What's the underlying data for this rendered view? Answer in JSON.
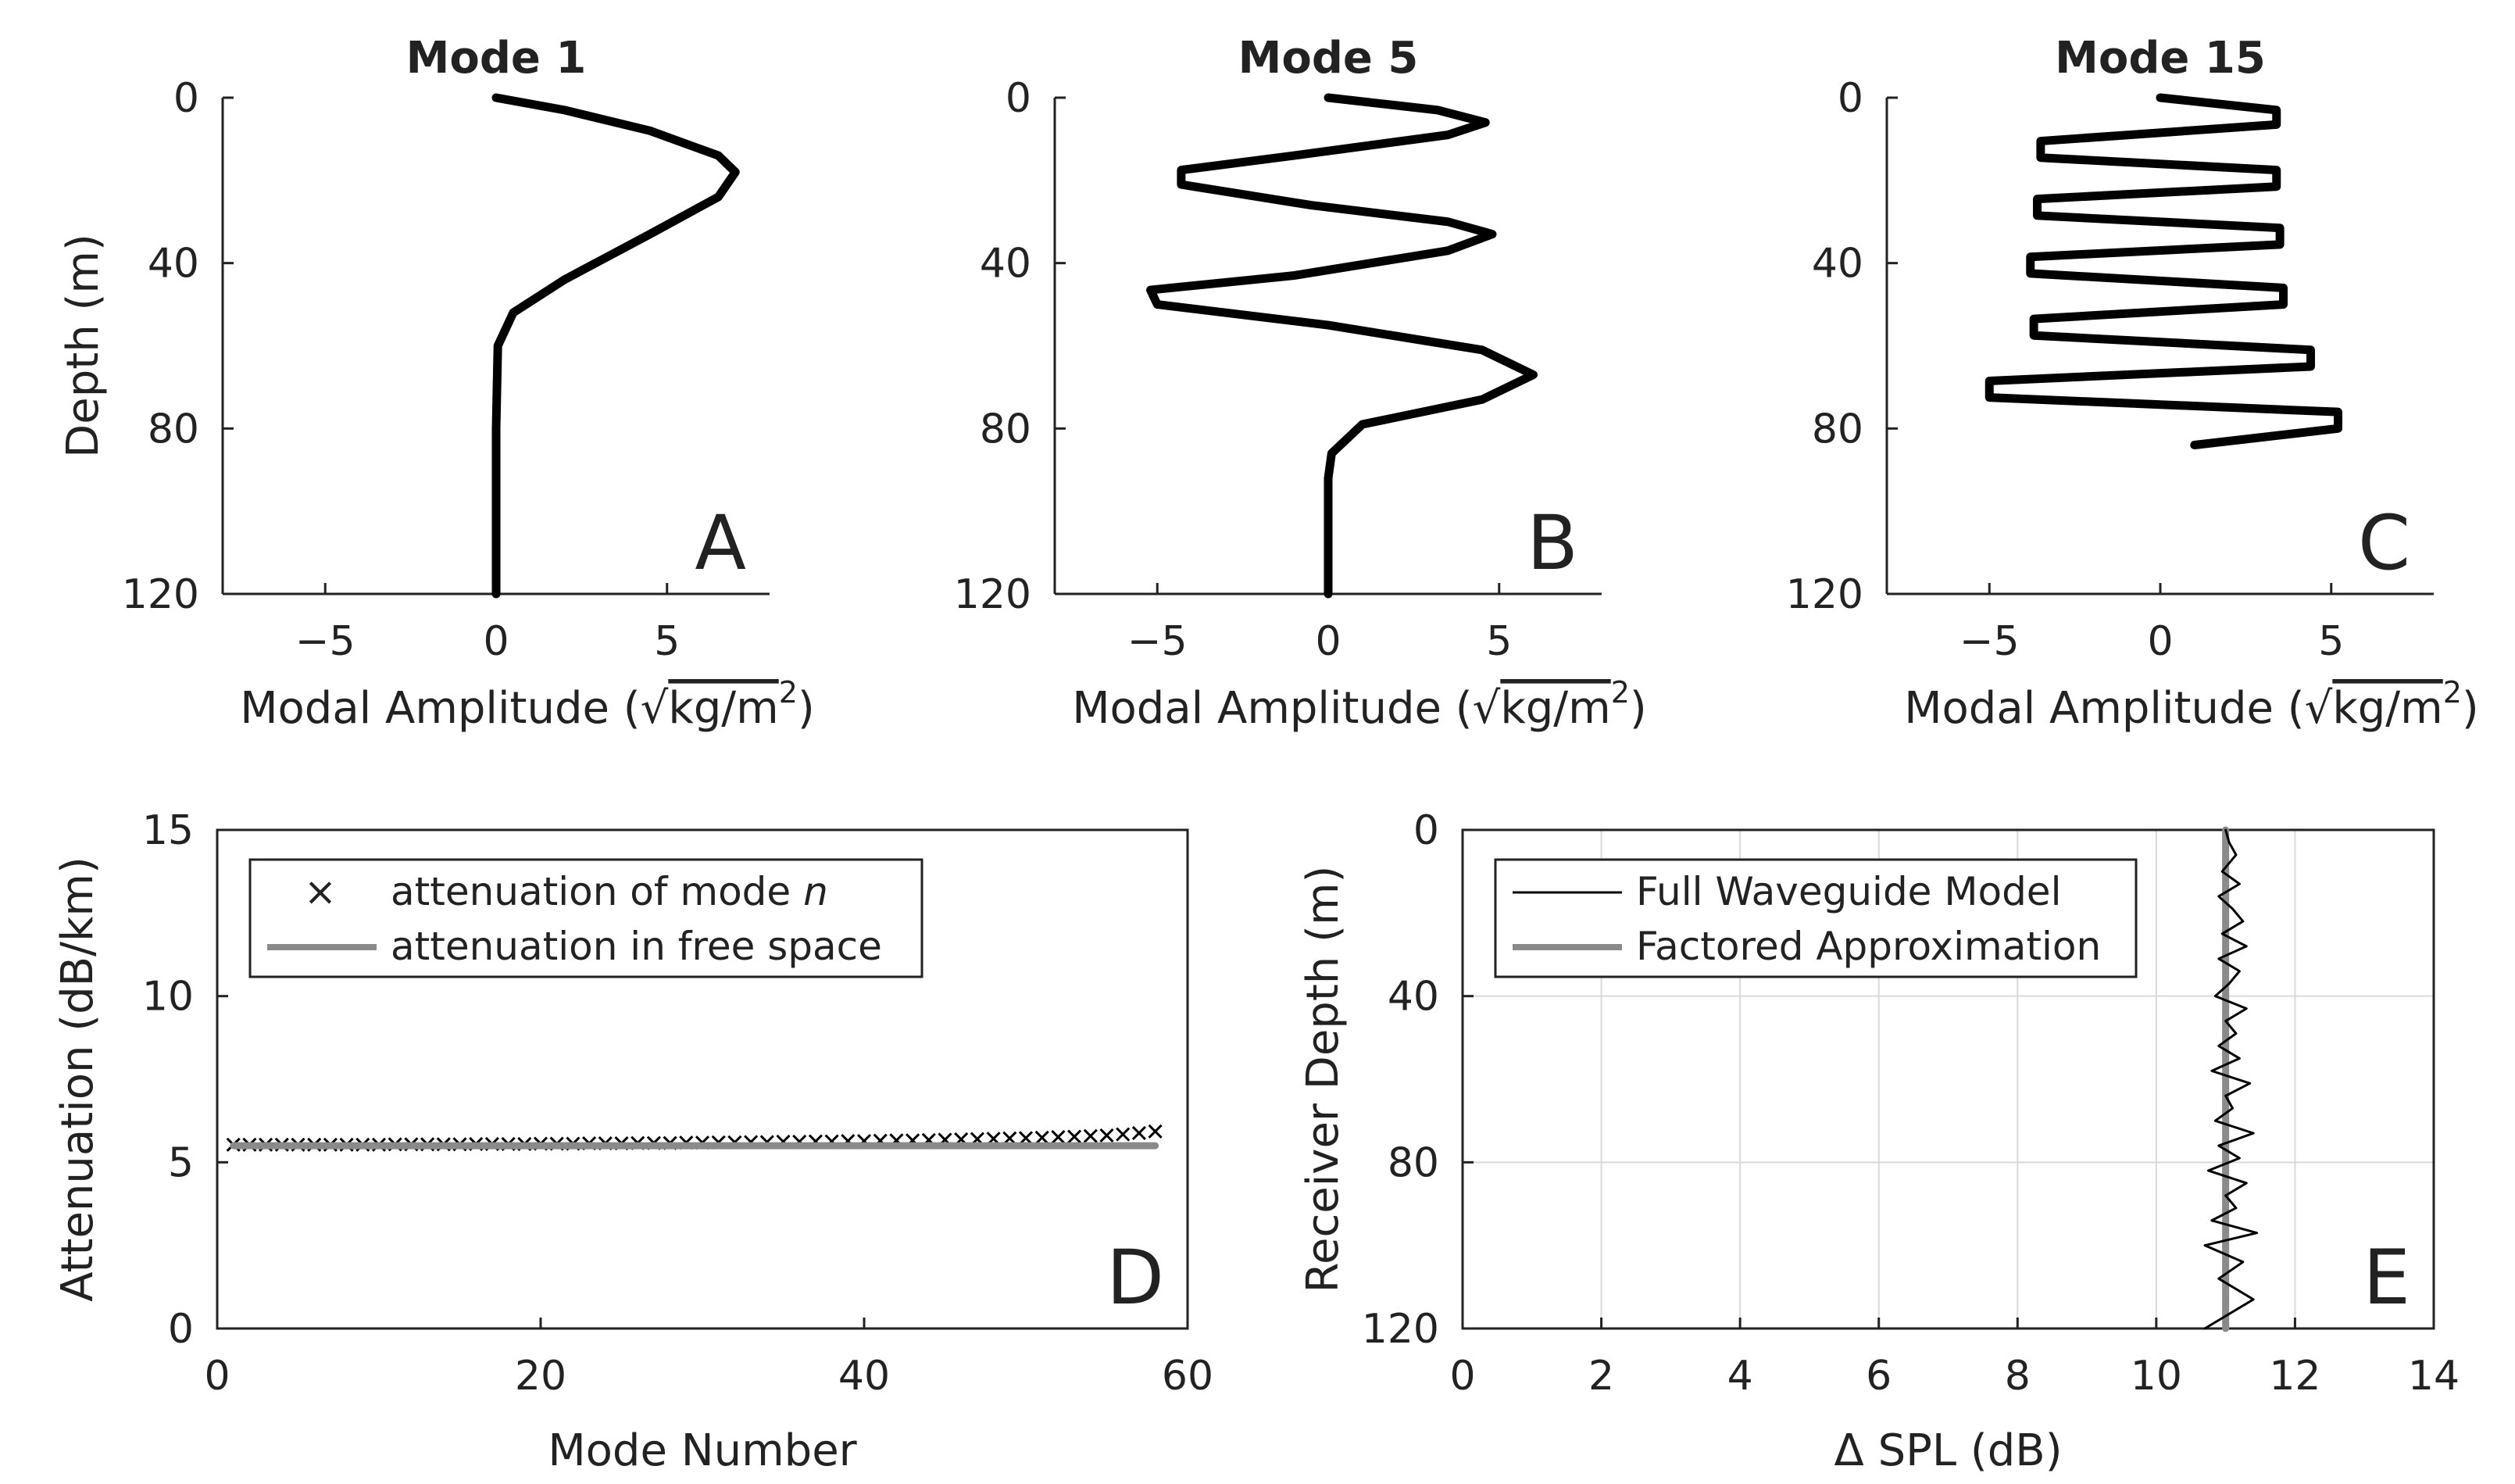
{
  "colors": {
    "curve": "#000000",
    "free_space": "#8a8a8a",
    "approx": "#8a8a8a",
    "grid": "#d9d9d9",
    "axis": "#222222"
  },
  "chart_data": [
    {
      "id": "A",
      "type": "line",
      "title": "Mode 1",
      "letter": "A",
      "xlabel_main": "Modal Amplitude (",
      "xlabel_sqrt": "√",
      "xlabel_unit": "kg/m",
      "xlabel_sup": "2",
      "xlabel_close": ")",
      "ylabel": "Depth (m)",
      "xlim": [
        -8,
        8
      ],
      "ylim": [
        0,
        120
      ],
      "y_reversed": true,
      "xticks": [
        -5,
        0,
        5
      ],
      "xtick_labels": [
        "−5",
        "0",
        "5"
      ],
      "yticks": [
        0,
        40,
        80,
        120
      ],
      "ytick_labels": [
        "0",
        "40",
        "80",
        "120"
      ],
      "series": [
        {
          "name": "Mode 1",
          "x": [
            0,
            2,
            4.5,
            6.5,
            7,
            6.5,
            4.5,
            2,
            0.5,
            0.05,
            0,
            0
          ],
          "y": [
            0,
            3,
            8,
            14,
            18,
            24,
            33,
            44,
            52,
            60,
            80,
            120
          ]
        }
      ]
    },
    {
      "id": "B",
      "type": "line",
      "title": "Mode 5",
      "letter": "B",
      "xlabel_main": "Modal Amplitude (",
      "xlabel_sqrt": "√",
      "xlabel_unit": "kg/m",
      "xlabel_sup": "2",
      "xlabel_close": ")",
      "xlim": [
        -8,
        8
      ],
      "ylim": [
        0,
        120
      ],
      "y_reversed": true,
      "xticks": [
        -5,
        0,
        5
      ],
      "xtick_labels": [
        "−5",
        "0",
        "5"
      ],
      "yticks": [
        0,
        40,
        80,
        120
      ],
      "ytick_labels": [
        "0",
        "40",
        "80",
        "120"
      ],
      "series": [
        {
          "name": "Mode 5",
          "x": [
            0,
            3.2,
            4.6,
            3.5,
            -1.0,
            -4.3,
            -4.3,
            -0.5,
            3.5,
            4.8,
            3.5,
            -1.0,
            -5.2,
            -5.0,
            0,
            4.5,
            6.0,
            4.5,
            1.0,
            0.1,
            0,
            0
          ],
          "y": [
            0,
            3,
            6,
            9,
            14,
            17.5,
            21,
            26,
            30,
            33,
            37,
            43,
            46.5,
            50,
            55,
            61,
            67,
            73,
            79,
            86,
            92,
            120
          ]
        }
      ]
    },
    {
      "id": "C",
      "type": "line",
      "title": "Mode 15",
      "letter": "C",
      "xlabel_main": "Modal Amplitude (",
      "xlabel_sqrt": "√",
      "xlabel_unit": "kg/m",
      "xlabel_sup": "2",
      "xlabel_close": ")",
      "xlim": [
        -8,
        8
      ],
      "ylim": [
        0,
        120
      ],
      "y_reversed": true,
      "xticks": [
        -5,
        0,
        5
      ],
      "xtick_labels": [
        "−5",
        "0",
        "5"
      ],
      "yticks": [
        0,
        40,
        80,
        120
      ],
      "ytick_labels": [
        "0",
        "40",
        "80",
        "120"
      ],
      "series": [
        {
          "name": "Mode 15",
          "x": [
            0,
            3.4,
            3.4,
            -3.5,
            -3.5,
            3.4,
            3.4,
            -3.6,
            -3.6,
            3.5,
            3.5,
            -3.8,
            -3.8,
            3.6,
            3.6,
            -3.7,
            -3.7,
            4.4,
            4.4,
            -5.0,
            -5.0,
            5.2,
            5.2,
            1.0
          ],
          "y": [
            0,
            3,
            6.5,
            10.5,
            14.5,
            17.5,
            21.5,
            24.5,
            28.5,
            31.5,
            35.5,
            38.5,
            42.5,
            46,
            50,
            53.5,
            57.5,
            61,
            65,
            68.5,
            72.5,
            76,
            80,
            84
          ]
        }
      ]
    },
    {
      "id": "D",
      "type": "scatter",
      "letter": "D",
      "xlabel": "Mode Number",
      "ylabel": "Attenuation (dB/km)",
      "xlim": [
        0,
        60
      ],
      "ylim": [
        0,
        15
      ],
      "xticks": [
        0,
        20,
        40,
        60
      ],
      "xtick_labels": [
        "0",
        "20",
        "40",
        "60"
      ],
      "yticks": [
        0,
        5,
        10,
        15
      ],
      "ytick_labels": [
        "0",
        "5",
        "10",
        "15"
      ],
      "legend_position": "top-left",
      "legend": [
        {
          "marker": "×",
          "text": "attenuation of mode ",
          "text_italic": "n"
        },
        {
          "marker": "line",
          "text": "attenuation in free space"
        }
      ],
      "series": [
        {
          "name": "attenuation of mode n",
          "marker": "x",
          "x": [
            1,
            2,
            3,
            4,
            5,
            6,
            7,
            8,
            9,
            10,
            11,
            12,
            13,
            14,
            15,
            16,
            17,
            18,
            19,
            20,
            21,
            22,
            23,
            24,
            25,
            26,
            27,
            28,
            29,
            30,
            31,
            32,
            33,
            34,
            35,
            36,
            37,
            38,
            39,
            40,
            41,
            42,
            43,
            44,
            45,
            46,
            47,
            48,
            49,
            50,
            51,
            52,
            53,
            54,
            55,
            56,
            57,
            58
          ],
          "y": [
            5.53,
            5.53,
            5.53,
            5.53,
            5.53,
            5.53,
            5.53,
            5.53,
            5.53,
            5.53,
            5.54,
            5.54,
            5.54,
            5.54,
            5.54,
            5.55,
            5.55,
            5.55,
            5.55,
            5.56,
            5.56,
            5.56,
            5.57,
            5.57,
            5.57,
            5.58,
            5.58,
            5.58,
            5.59,
            5.59,
            5.6,
            5.6,
            5.61,
            5.61,
            5.62,
            5.62,
            5.63,
            5.63,
            5.64,
            5.64,
            5.65,
            5.66,
            5.66,
            5.67,
            5.68,
            5.69,
            5.7,
            5.71,
            5.72,
            5.73,
            5.74,
            5.76,
            5.77,
            5.79,
            5.81,
            5.84,
            5.88,
            5.93
          ]
        },
        {
          "name": "attenuation in free space",
          "x": [
            1,
            58
          ],
          "y": [
            5.5,
            5.5
          ]
        }
      ]
    },
    {
      "id": "E",
      "type": "line",
      "letter": "E",
      "xlabel": "Δ SPL (dB)",
      "ylabel": "Receiver Depth (m)",
      "xlim": [
        0,
        14
      ],
      "ylim": [
        0,
        120
      ],
      "y_reversed": true,
      "grid": true,
      "xticks": [
        0,
        2,
        4,
        6,
        8,
        10,
        12,
        14
      ],
      "xtick_labels": [
        "0",
        "2",
        "4",
        "6",
        "8",
        "10",
        "12",
        "14"
      ],
      "yticks": [
        0,
        40,
        80,
        120
      ],
      "ytick_labels": [
        "0",
        "40",
        "80",
        "120"
      ],
      "legend_position": "top-left",
      "legend": [
        {
          "marker": "line-thin",
          "text": "Full Waveguide Model"
        },
        {
          "marker": "line",
          "text": "Factored Approximation"
        }
      ],
      "series": [
        {
          "name": "Full Waveguide Model",
          "x": [
            11.0,
            11.05,
            11.15,
            10.95,
            11.2,
            10.9,
            11.1,
            11.25,
            10.95,
            11.3,
            10.9,
            11.2,
            11.05,
            10.85,
            11.3,
            11.0,
            11.15,
            10.9,
            11.2,
            10.8,
            11.35,
            11.0,
            11.1,
            10.85,
            11.4,
            10.9,
            11.2,
            10.75,
            11.3,
            11.0,
            11.15,
            10.8,
            11.45,
            10.7,
            11.25,
            10.9,
            11.4,
            10.7
          ],
          "y": [
            0,
            3,
            6,
            10,
            13,
            16,
            19,
            22,
            25,
            28,
            31,
            34,
            37,
            40,
            43,
            46,
            49,
            52,
            55,
            58,
            61,
            64,
            67,
            70,
            73,
            76,
            79,
            82,
            85,
            88,
            91,
            94,
            97,
            100,
            104,
            108,
            113,
            120
          ]
        },
        {
          "name": "Factored Approximation",
          "x": [
            11.0,
            11.0
          ],
          "y": [
            0,
            120
          ]
        }
      ]
    }
  ]
}
